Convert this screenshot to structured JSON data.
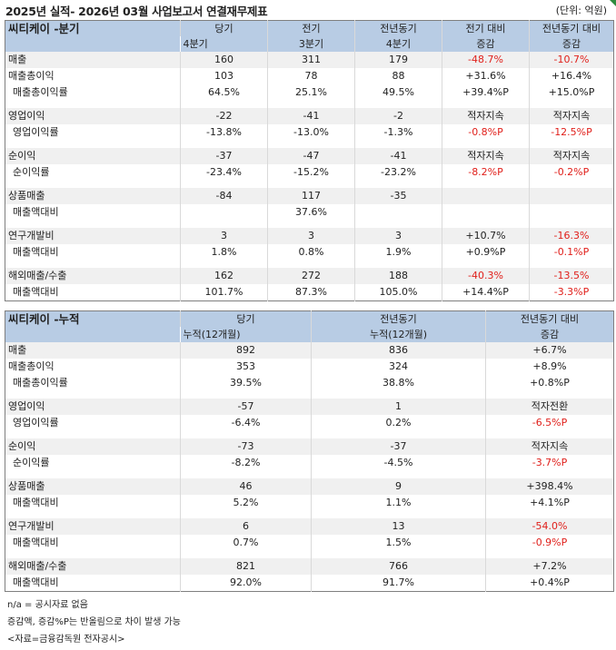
{
  "header": {
    "title": "2025년 실적- 2026년 03월 사업보고서 연결재무제표",
    "unit": "(단위: 억원)"
  },
  "quarterly": {
    "name": "씨티케이 -분기",
    "col_headers": [
      [
        "당기",
        "4분기"
      ],
      [
        "전기",
        "3분기"
      ],
      [
        "전년동기",
        "4분기"
      ],
      [
        "전기 대비",
        "증감"
      ],
      [
        "전년동기 대비",
        "증감"
      ]
    ],
    "rows": [
      {
        "label": "매출",
        "shade": true,
        "cells": [
          "160",
          "311",
          "179",
          "-48.7%",
          "-10.7%"
        ],
        "red": [
          false,
          false,
          false,
          true,
          true
        ]
      },
      {
        "label": "매출총이익",
        "shade": false,
        "cells": [
          "103",
          "78",
          "88",
          "+31.6%",
          "+16.4%"
        ],
        "red": [
          false,
          false,
          false,
          false,
          false
        ]
      },
      {
        "label": "매출총이익률",
        "sub": true,
        "shade": false,
        "cells": [
          "64.5%",
          "25.1%",
          "49.5%",
          "+39.4%P",
          "+15.0%P"
        ],
        "red": [
          false,
          false,
          false,
          false,
          false
        ]
      },
      {
        "label": "영업이익",
        "shade": true,
        "cells": [
          "-22",
          "-41",
          "-2",
          "적자지속",
          "적자지속"
        ],
        "red": [
          false,
          false,
          false,
          false,
          false
        ]
      },
      {
        "label": "영업이익률",
        "sub": true,
        "shade": false,
        "cells": [
          "-13.8%",
          "-13.0%",
          "-1.3%",
          "-0.8%P",
          "-12.5%P"
        ],
        "red": [
          false,
          false,
          false,
          true,
          true
        ]
      },
      {
        "label": "순이익",
        "shade": true,
        "cells": [
          "-37",
          "-47",
          "-41",
          "적자지속",
          "적자지속"
        ],
        "red": [
          false,
          false,
          false,
          false,
          false
        ]
      },
      {
        "label": "순이익률",
        "sub": true,
        "shade": false,
        "cells": [
          "-23.4%",
          "-15.2%",
          "-23.2%",
          "-8.2%P",
          "-0.2%P"
        ],
        "red": [
          false,
          false,
          false,
          true,
          true
        ]
      },
      {
        "label": "상품매출",
        "shade": true,
        "cells": [
          "-84",
          "117",
          "-35",
          "",
          ""
        ],
        "red": [
          false,
          false,
          false,
          false,
          false
        ]
      },
      {
        "label": "매출액대비",
        "sub": true,
        "shade": false,
        "cells": [
          "",
          "37.6%",
          "",
          "",
          ""
        ],
        "red": [
          false,
          false,
          false,
          false,
          false
        ]
      },
      {
        "label": "연구개발비",
        "shade": true,
        "cells": [
          "3",
          "3",
          "3",
          "+10.7%",
          "-16.3%"
        ],
        "red": [
          false,
          false,
          false,
          false,
          true
        ]
      },
      {
        "label": "매출액대비",
        "sub": true,
        "shade": false,
        "cells": [
          "1.8%",
          "0.8%",
          "1.9%",
          "+0.9%P",
          "-0.1%P"
        ],
        "red": [
          false,
          false,
          false,
          false,
          true
        ]
      },
      {
        "label": "해외매출/수출",
        "shade": true,
        "cells": [
          "162",
          "272",
          "188",
          "-40.3%",
          "-13.5%"
        ],
        "red": [
          false,
          false,
          false,
          true,
          true
        ]
      },
      {
        "label": "매출액대비",
        "sub": true,
        "shade": false,
        "cells": [
          "101.7%",
          "87.3%",
          "105.0%",
          "+14.4%P",
          "-3.3%P"
        ],
        "red": [
          false,
          false,
          false,
          false,
          true
        ]
      }
    ]
  },
  "cumulative": {
    "name": "씨티케이 -누적",
    "col_headers": [
      [
        "당기",
        "누적(12개월)"
      ],
      [
        "전년동기",
        "누적(12개월)"
      ],
      [
        "전년동기 대비",
        "증감"
      ]
    ],
    "rows": [
      {
        "label": "매출",
        "shade": true,
        "cells": [
          "892",
          "836",
          "+6.7%"
        ],
        "red": [
          false,
          false,
          false
        ]
      },
      {
        "label": "매출총이익",
        "shade": false,
        "cells": [
          "353",
          "324",
          "+8.9%"
        ],
        "red": [
          false,
          false,
          false
        ]
      },
      {
        "label": "매출총이익률",
        "sub": true,
        "shade": false,
        "cells": [
          "39.5%",
          "38.8%",
          "+0.8%P"
        ],
        "red": [
          false,
          false,
          false
        ]
      },
      {
        "label": "영업이익",
        "shade": true,
        "cells": [
          "-57",
          "1",
          "적자전환"
        ],
        "red": [
          false,
          false,
          false
        ]
      },
      {
        "label": "영업이익률",
        "sub": true,
        "shade": false,
        "cells": [
          "-6.4%",
          "0.2%",
          "-6.5%P"
        ],
        "red": [
          false,
          false,
          true
        ]
      },
      {
        "label": "순이익",
        "shade": true,
        "cells": [
          "-73",
          "-37",
          "적자지속"
        ],
        "red": [
          false,
          false,
          false
        ]
      },
      {
        "label": "순이익률",
        "sub": true,
        "shade": false,
        "cells": [
          "-8.2%",
          "-4.5%",
          "-3.7%P"
        ],
        "red": [
          false,
          false,
          true
        ]
      },
      {
        "label": "상품매출",
        "shade": true,
        "cells": [
          "46",
          "9",
          "+398.4%"
        ],
        "red": [
          false,
          false,
          false
        ]
      },
      {
        "label": "매출액대비",
        "sub": true,
        "shade": false,
        "cells": [
          "5.2%",
          "1.1%",
          "+4.1%P"
        ],
        "red": [
          false,
          false,
          false
        ]
      },
      {
        "label": "연구개발비",
        "shade": true,
        "cells": [
          "6",
          "13",
          "-54.0%"
        ],
        "red": [
          false,
          false,
          true
        ]
      },
      {
        "label": "매출액대비",
        "sub": true,
        "shade": false,
        "cells": [
          "0.7%",
          "1.5%",
          "-0.9%P"
        ],
        "red": [
          false,
          false,
          true
        ]
      },
      {
        "label": "해외매출/수출",
        "shade": true,
        "cells": [
          "821",
          "766",
          "+7.2%"
        ],
        "red": [
          false,
          false,
          false
        ]
      },
      {
        "label": "매출액대비",
        "sub": true,
        "shade": false,
        "cells": [
          "92.0%",
          "91.7%",
          "+0.4%P"
        ],
        "red": [
          false,
          false,
          false
        ]
      }
    ]
  },
  "notes": [
    "n/a = 공시자료 없음",
    "증감액, 증감%P는 반올림으로 차이 발생 가능",
    "<자료=금융감독원 전자공시>"
  ]
}
